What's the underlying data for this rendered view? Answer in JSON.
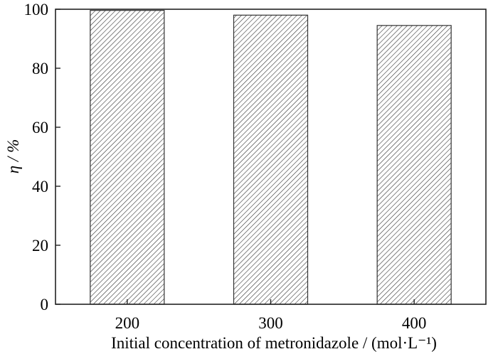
{
  "chart_data": {
    "type": "bar",
    "title": "",
    "categories": [
      "200",
      "300",
      "400"
    ],
    "values": [
      99.6,
      98.0,
      94.5
    ],
    "xlabel": "Initial concentration of metronidazole / (mol·L⁻¹)",
    "ylabel": "η / %",
    "ylim": [
      0,
      100
    ],
    "yticks": [
      0,
      20,
      40,
      60,
      80,
      100
    ],
    "grid": false,
    "bar_fill": "hatched",
    "colors": {
      "bar_stroke": "#333333",
      "hatch": "#333333",
      "axis": "#222222"
    }
  }
}
